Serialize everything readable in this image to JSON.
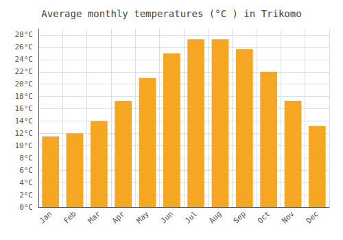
{
  "chart_data": {
    "type": "bar",
    "title": "Average monthly temperatures (°C ) in Trikomo",
    "categories": [
      "Jan",
      "Feb",
      "Mar",
      "Apr",
      "May",
      "Jun",
      "Jul",
      "Aug",
      "Sep",
      "Oct",
      "Nov",
      "Dec"
    ],
    "values": [
      11.5,
      12.0,
      14.0,
      17.3,
      21.0,
      25.0,
      27.3,
      27.3,
      25.7,
      22.0,
      17.3,
      13.2
    ],
    "color": "#F5A623",
    "ylim": [
      0,
      29
    ],
    "yticks": [
      {
        "value": 0,
        "label": "0°C"
      },
      {
        "value": 2,
        "label": "2°C"
      },
      {
        "value": 4,
        "label": "4°C"
      },
      {
        "value": 6,
        "label": "6°C"
      },
      {
        "value": 8,
        "label": "8°C"
      },
      {
        "value": 10,
        "label": "10°C"
      },
      {
        "value": 12,
        "label": "12°C"
      },
      {
        "value": 14,
        "label": "14°C"
      },
      {
        "value": 16,
        "label": "16°C"
      },
      {
        "value": 18,
        "label": "18°C"
      },
      {
        "value": 20,
        "label": "20°C"
      },
      {
        "value": 22,
        "label": "22°C"
      },
      {
        "value": 24,
        "label": "24°C"
      },
      {
        "value": 26,
        "label": "26°C"
      },
      {
        "value": 28,
        "label": "28°C"
      }
    ],
    "grid": true
  }
}
